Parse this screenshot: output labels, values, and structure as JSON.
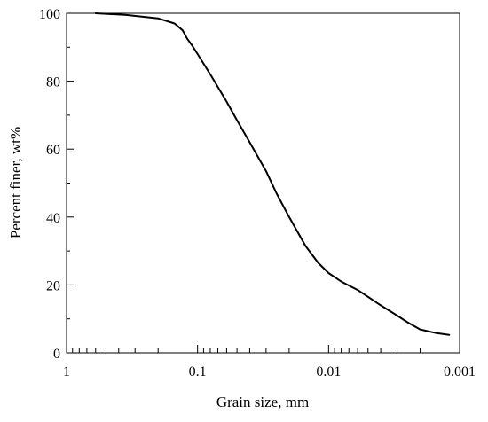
{
  "chart_data": {
    "type": "line",
    "title": "",
    "xlabel": "Grain size, mm",
    "ylabel": "Percent finer, wt%",
    "x_scale": "log",
    "x_reversed": true,
    "xlim": [
      1,
      0.001
    ],
    "ylim": [
      0,
      100
    ],
    "x_ticks": [
      {
        "value": 1,
        "label": "1"
      },
      {
        "value": 0.1,
        "label": "0.1"
      },
      {
        "value": 0.01,
        "label": "0.01"
      },
      {
        "value": 0.001,
        "label": "0.001"
      }
    ],
    "y_ticks": [
      {
        "value": 0,
        "label": "0"
      },
      {
        "value": 20,
        "label": "20"
      },
      {
        "value": 40,
        "label": "40"
      },
      {
        "value": 60,
        "label": "60"
      },
      {
        "value": 80,
        "label": "80"
      },
      {
        "value": 100,
        "label": "100"
      }
    ],
    "grid": false,
    "legend": "none",
    "line_color": "#000000",
    "series": [
      {
        "x": [
          0.6,
          0.35,
          0.2,
          0.15,
          0.13,
          0.12,
          0.11,
          0.1,
          0.08,
          0.06,
          0.05,
          0.04,
          0.03,
          0.025,
          0.02,
          0.015,
          0.012,
          0.01,
          0.008,
          0.006,
          0.005,
          0.004,
          0.003,
          0.0025,
          0.002,
          0.0015,
          0.0012
        ],
        "values": [
          100,
          99.5,
          98.5,
          97,
          95,
          92.5,
          90.5,
          88,
          82,
          74,
          68.5,
          62,
          53.5,
          47,
          40,
          31.5,
          26.5,
          23.5,
          21,
          18.5,
          16.5,
          14,
          11,
          9,
          6.9,
          5.8,
          5.3
        ]
      }
    ]
  }
}
